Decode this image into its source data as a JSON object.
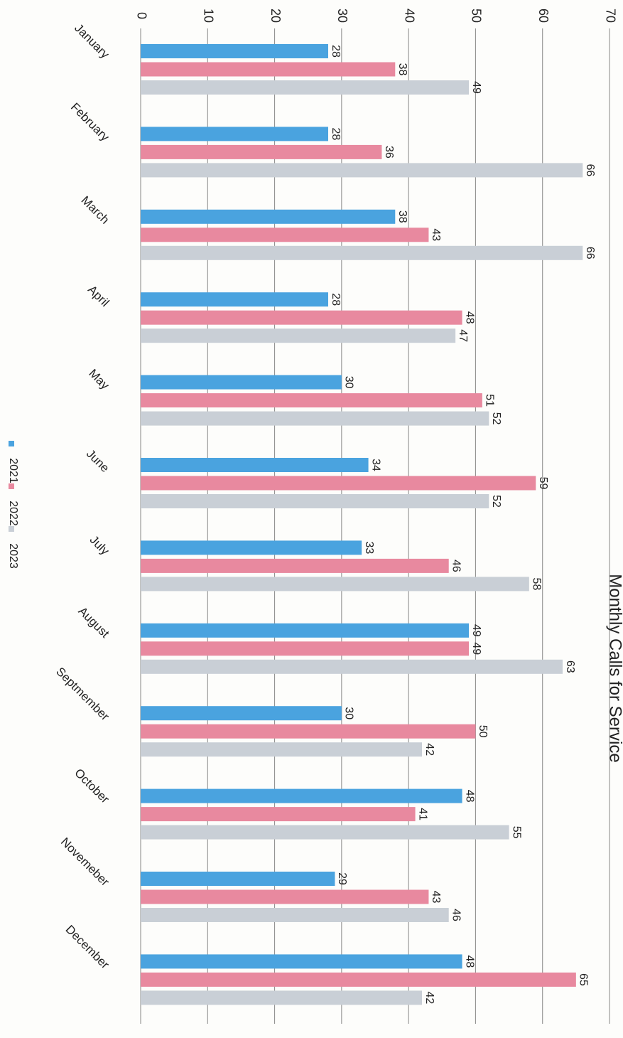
{
  "chart_data": {
    "type": "bar",
    "orientation": "vertical-bars-rotated-page",
    "title": "Monthly Calls for Service",
    "xlabel": "",
    "ylabel": "",
    "ylim": [
      0,
      70
    ],
    "ticks": [
      "0",
      "10",
      "20",
      "30",
      "40",
      "50",
      "60",
      "70"
    ],
    "categories": [
      "January",
      "February",
      "March",
      "April",
      "May",
      "June",
      "July",
      "August",
      "Septmember",
      "October",
      "Novemeber",
      "December"
    ],
    "series": [
      {
        "name": "2021",
        "color": "#4aa3df",
        "values": [
          28,
          28,
          38,
          28,
          30,
          34,
          33,
          49,
          30,
          48,
          29,
          48
        ]
      },
      {
        "name": "2022",
        "color": "#e8899f",
        "values": [
          38,
          36,
          43,
          48,
          51,
          59,
          46,
          49,
          50,
          41,
          43,
          65
        ]
      },
      {
        "name": "2023",
        "color": "#c9cfd6",
        "values": [
          49,
          66,
          66,
          47,
          52,
          52,
          58,
          63,
          42,
          55,
          46,
          42
        ]
      }
    ],
    "grid": true,
    "legend": "bottom"
  }
}
